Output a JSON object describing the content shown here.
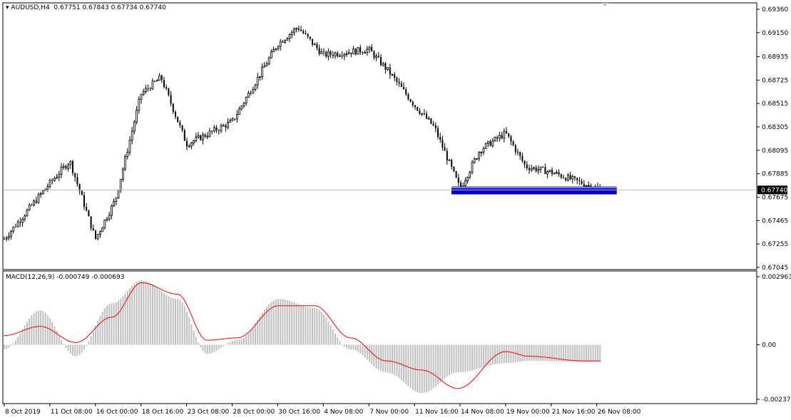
{
  "header": {
    "symbol": "AUDUSD,H4",
    "ohlc": "0.67751 0.67843 0.67734 0.67740",
    "macd_label": "MACD(12,26,9) -0.000749 -0.000693"
  },
  "current_price_label": "0.67740",
  "colors": {
    "background": "#ffffff",
    "candles": "#000000",
    "support_zone": "#0000cc",
    "macd_histogram": "#c0c0c0",
    "macd_signal": "#ff0000",
    "price_line": "#c0c0c0"
  },
  "chart_data": [
    {
      "type": "candlestick",
      "title": "AUDUSD,H4",
      "y_ticks": [
        "0.69360",
        "0.69150",
        "0.68935",
        "0.68725",
        "0.68515",
        "0.68305",
        "0.68095",
        "0.67885",
        "0.67675",
        "0.67465",
        "0.67255",
        "0.67045"
      ],
      "x_ticks": [
        "8 Oct 2019",
        "11 Oct 08:00",
        "16 Oct 00:00",
        "18 Oct 16:00",
        "23 Oct 08:00",
        "28 Oct 00:00",
        "30 Oct 16:00",
        "4 Nov 08:00",
        "7 Nov 00:00",
        "11 Nov 16:00",
        "14 Nov 08:00",
        "19 Nov 00:00",
        "21 Nov 16:00",
        "26 Nov 08:00"
      ],
      "ylim": [
        0.67045,
        0.6936
      ],
      "current_price": 0.6774,
      "support_zone": {
        "low": 0.677,
        "high": 0.6777,
        "from": "14 Nov 08:00",
        "to": "26 Nov 08:00"
      },
      "price_path": [
        [
          "8 Oct 2019",
          0.673
        ],
        [
          "11 Oct 08:00",
          0.678
        ],
        [
          "11 Oct 08:00",
          0.68
        ],
        [
          "16 Oct 00:00",
          0.673
        ],
        [
          "16 Oct 00:00",
          0.6765
        ],
        [
          "18 Oct 16:00",
          0.686
        ],
        [
          "18 Oct 16:00",
          0.6875
        ],
        [
          "23 Oct 08:00",
          0.6815
        ],
        [
          "28 Oct 00:00",
          0.6835
        ],
        [
          "30 Oct 16:00",
          0.6905
        ],
        [
          "30 Oct 16:00",
          0.692
        ],
        [
          "4 Nov 08:00",
          0.6895
        ],
        [
          "7 Nov 00:00",
          0.69
        ],
        [
          "7 Nov 00:00",
          0.688
        ],
        [
          "11 Nov 16:00",
          0.685
        ],
        [
          "11 Nov 16:00",
          0.683
        ],
        [
          "14 Nov 08:00",
          0.6775
        ],
        [
          "14 Nov 08:00",
          0.681
        ],
        [
          "19 Nov 00:00",
          0.6825
        ],
        [
          "19 Nov 00:00",
          0.6795
        ],
        [
          "21 Nov 16:00",
          0.679
        ],
        [
          "26 Nov 08:00",
          0.6774
        ]
      ]
    },
    {
      "type": "bar",
      "title": "MACD(12,26,9)",
      "y_ticks": [
        "0.002963",
        "0.00",
        "-0.002373"
      ],
      "ylim": [
        -0.002373,
        0.002963
      ],
      "series": [
        {
          "values": [
            [
              0,
              -0.0002
            ],
            [
              0.06,
              0.0015
            ],
            [
              0.12,
              -0.0005
            ],
            [
              0.18,
              0.0018
            ],
            [
              0.23,
              0.0028
            ],
            [
              0.29,
              0.002
            ],
            [
              0.34,
              -0.0004
            ],
            [
              0.39,
              0.0002
            ],
            [
              0.46,
              0.002
            ],
            [
              0.52,
              0.0016
            ],
            [
              0.58,
              -0.0002
            ],
            [
              0.64,
              -0.0012
            ],
            [
              0.7,
              -0.0021
            ],
            [
              0.76,
              -0.0012
            ],
            [
              0.84,
              -0.0008
            ],
            [
              0.88,
              -0.0007
            ],
            [
              0.97,
              -0.00075
            ]
          ]
        },
        {
          "values": [
            [
              0,
              0.0004
            ],
            [
              0.06,
              0.0008
            ],
            [
              0.12,
              0.0001
            ],
            [
              0.18,
              0.0012
            ],
            [
              0.23,
              0.0027
            ],
            [
              0.29,
              0.0022
            ],
            [
              0.34,
              0.0002
            ],
            [
              0.39,
              0.0003
            ],
            [
              0.46,
              0.0017
            ],
            [
              0.52,
              0.0017
            ],
            [
              0.58,
              0.0003
            ],
            [
              0.64,
              -0.0007
            ],
            [
              0.7,
              -0.0011
            ],
            [
              0.76,
              -0.0019
            ],
            [
              0.84,
              -0.0003
            ],
            [
              0.88,
              -0.0005
            ],
            [
              0.97,
              -0.0007
            ]
          ]
        }
      ]
    }
  ]
}
